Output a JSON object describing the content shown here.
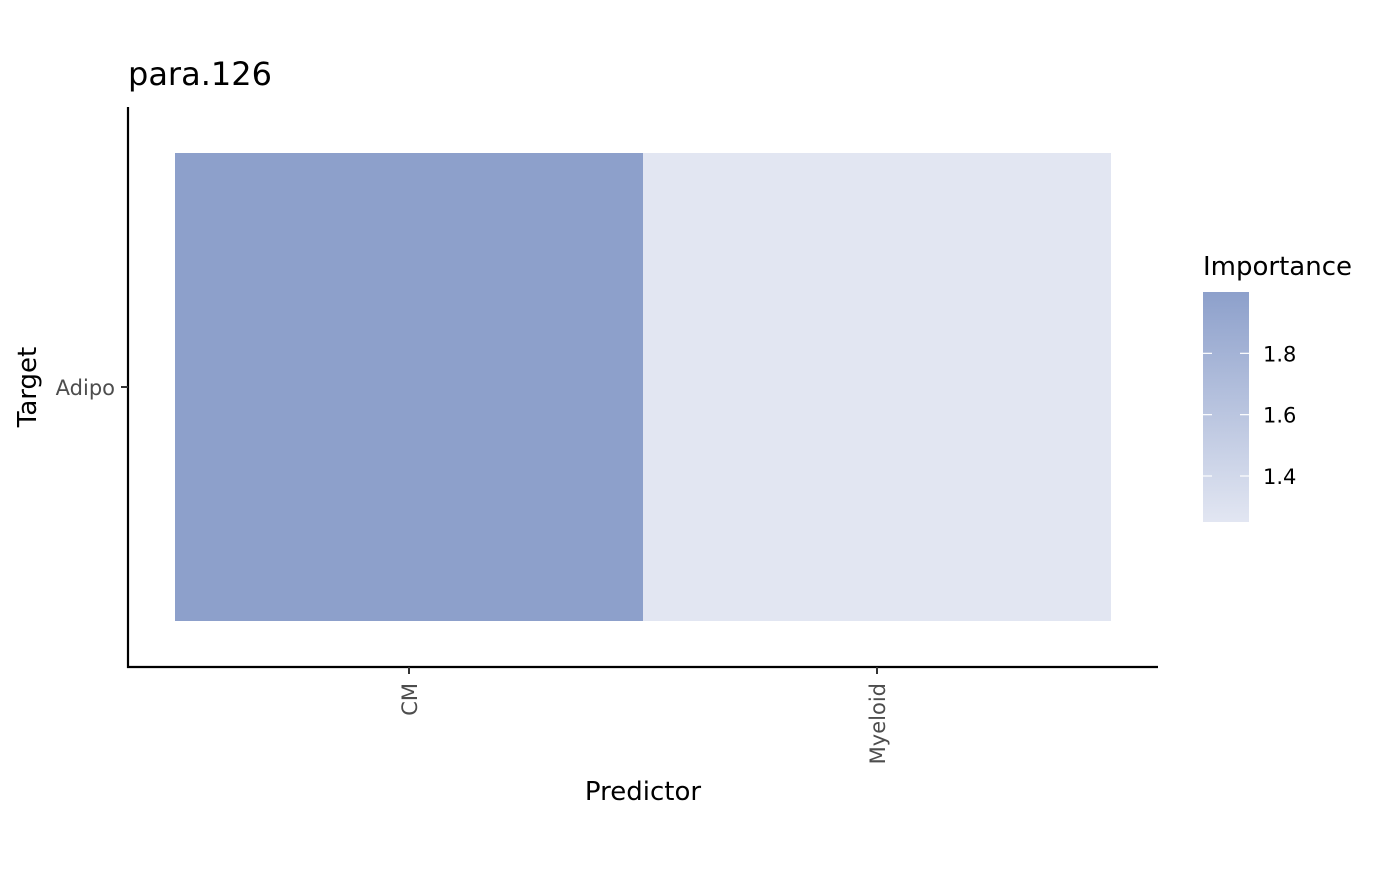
{
  "chart_data": {
    "type": "heatmap",
    "title": "para.126",
    "xlabel": "Predictor",
    "ylabel": "Target",
    "x_categories": [
      "CM",
      "Myeloid"
    ],
    "y_categories": [
      "Adipo"
    ],
    "cells": [
      {
        "x": "CM",
        "y": "Adipo",
        "value": 2.0
      },
      {
        "x": "Myeloid",
        "y": "Adipo",
        "value": 1.25
      }
    ],
    "legend": {
      "title": "Importance",
      "placement": "right",
      "min": 1.25,
      "max": 2.0,
      "ticks": [
        1.4,
        1.6,
        1.8
      ],
      "tick_labels": [
        "1.4",
        "1.6",
        "1.8"
      ],
      "low_color": "#e2e6f2",
      "high_color": "#8da0cb"
    },
    "grid": false
  }
}
